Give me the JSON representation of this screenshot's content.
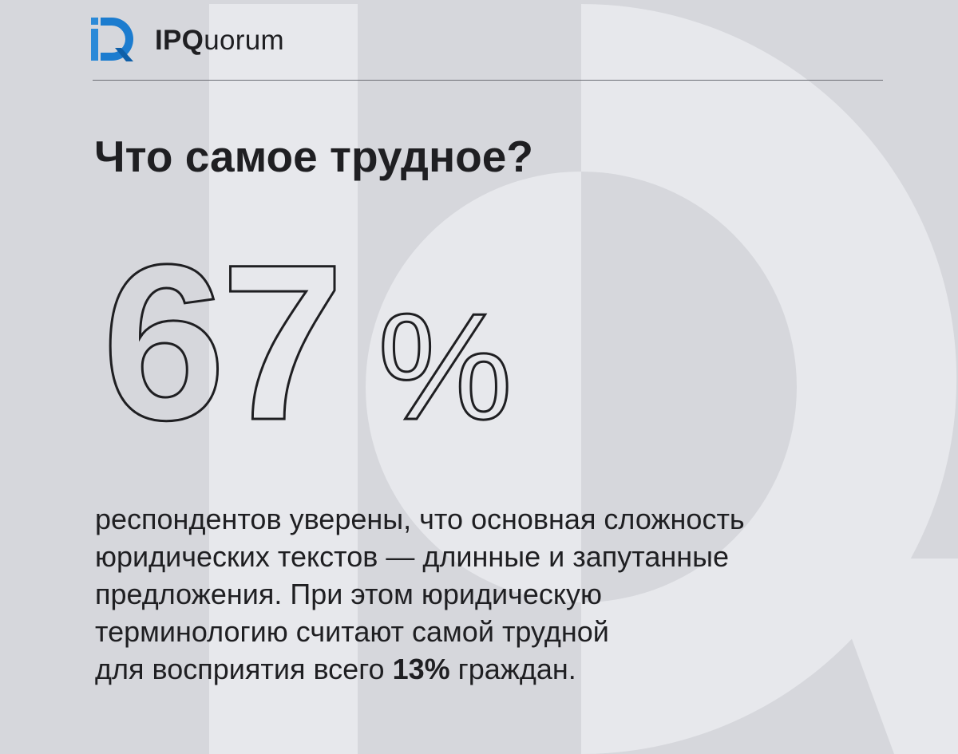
{
  "colors": {
    "background": "#d6d7dc",
    "watermark": "#e7e8ec",
    "text": "#1f1f22",
    "logo_blue": "#2b8ad8",
    "logo_dark": "#0f5fa8"
  },
  "brand": {
    "logo_icon": "ipquorum-logo-icon",
    "name_strong": "IPQ",
    "name_rest": "uorum"
  },
  "title": "Что самое трудное?",
  "stat": {
    "number": "67",
    "percent_sign": "%"
  },
  "body": {
    "line1": "респондентов уверены, что основная сложность",
    "line2": "юридических текстов — длинные и запутанные",
    "line3": "предложения. При этом юридическую",
    "line4": "терминологию считают самой трудной",
    "line5_before": "для восприятия всего ",
    "line5_bold": "13%",
    "line5_after": " граждан."
  }
}
